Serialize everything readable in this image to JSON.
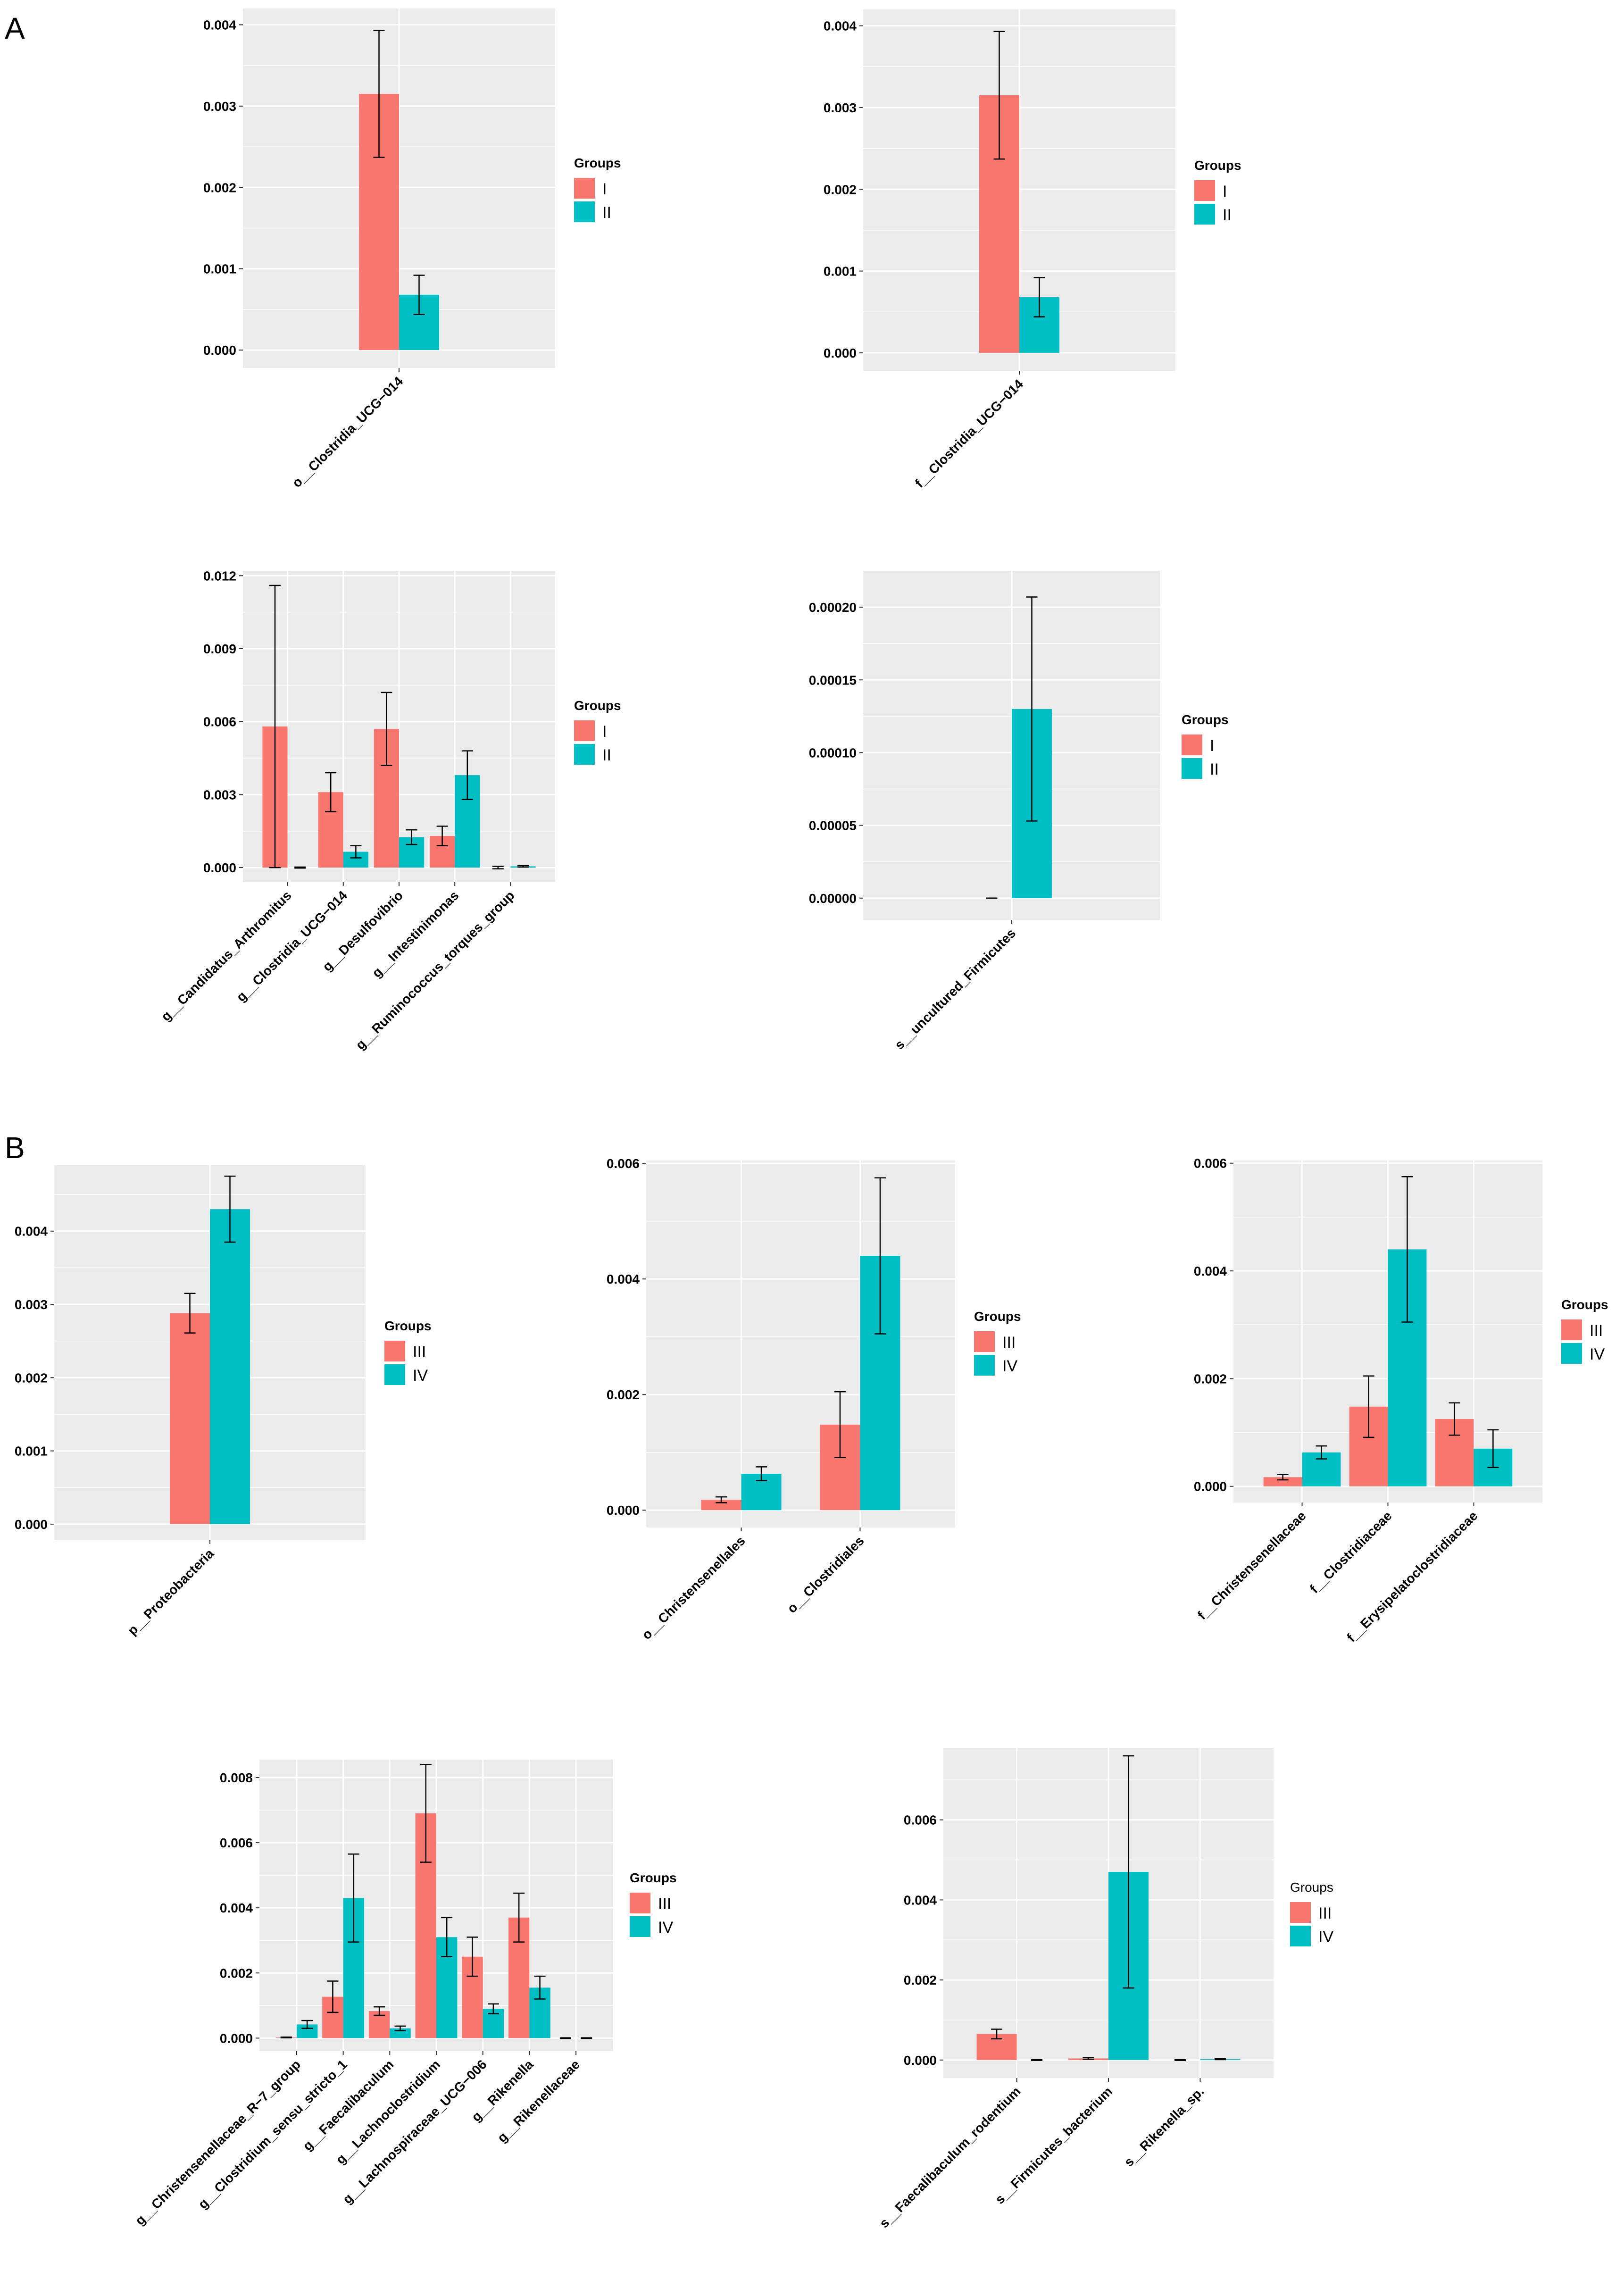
{
  "figure": {
    "panel_letters": [
      "A",
      "B"
    ],
    "colors": {
      "I": "#F8766D",
      "II": "#00BFC4",
      "III": "#F8766D",
      "IV": "#00BFC4",
      "panel_bg": "#EBEBEB",
      "grid": "#FFFFFF"
    }
  },
  "chart_data": [
    {
      "id": "A1",
      "type": "bar",
      "categories": [
        "o__Clostridia_UCG−014"
      ],
      "series": [
        {
          "name": "I",
          "values": [
            0.00315
          ],
          "errors": [
            0.00078
          ]
        },
        {
          "name": "II",
          "values": [
            0.00068
          ],
          "errors": [
            0.00024
          ]
        }
      ],
      "yticks": [
        "0.000",
        "0.001",
        "0.002",
        "0.003",
        "0.004"
      ],
      "ylim": [
        -0.00022,
        0.0042
      ],
      "legend": {
        "title": "Groups",
        "entries": [
          "I",
          "II"
        ],
        "placement": "right"
      }
    },
    {
      "id": "A2",
      "type": "bar",
      "categories": [
        "f__Clostridia_UCG−014"
      ],
      "series": [
        {
          "name": "I",
          "values": [
            0.00315
          ],
          "errors": [
            0.00078
          ]
        },
        {
          "name": "II",
          "values": [
            0.00068
          ],
          "errors": [
            0.00024
          ]
        }
      ],
      "yticks": [
        "0.000",
        "0.001",
        "0.002",
        "0.003",
        "0.004"
      ],
      "ylim": [
        -0.00022,
        0.0042
      ],
      "legend": {
        "title": "Groups",
        "entries": [
          "I",
          "II"
        ],
        "placement": "right"
      }
    },
    {
      "id": "A3",
      "type": "bar",
      "categories": [
        "g__Candidatus_Arthromitus",
        "g__Clostridia_UCG−014",
        "g__Desulfovibrio",
        "g__Intestinimonas",
        "g__Ruminococcus_torques_group"
      ],
      "series": [
        {
          "name": "I",
          "values": [
            0.0058,
            0.0031,
            0.0057,
            0.0013,
            0.0
          ],
          "errors": [
            0.0058,
            0.0008,
            0.0015,
            0.0004,
            5e-05
          ]
        },
        {
          "name": "II",
          "values": [
            0.0,
            0.00065,
            0.00125,
            0.0038,
            5e-05
          ],
          "errors": [
            2e-05,
            0.00025,
            0.0003,
            0.001,
            3e-05
          ]
        }
      ],
      "yticks": [
        "0.000",
        "0.003",
        "0.006",
        "0.009",
        "0.012"
      ],
      "ylim": [
        -0.0006,
        0.0122
      ],
      "legend": {
        "title": "Groups",
        "entries": [
          "I",
          "II"
        ],
        "placement": "right"
      }
    },
    {
      "id": "A4",
      "type": "bar",
      "categories": [
        "s__uncultured_Firmicutes"
      ],
      "series": [
        {
          "name": "I",
          "values": [
            0.0
          ],
          "errors": [
            0.0
          ]
        },
        {
          "name": "II",
          "values": [
            0.00013
          ],
          "errors": [
            7.7e-05
          ]
        }
      ],
      "yticks": [
        "0.00000",
        "0.00005",
        "0.00010",
        "0.00015",
        "0.00020"
      ],
      "ylim": [
        -1.5e-05,
        0.000225
      ],
      "legend": {
        "title": "Groups",
        "entries": [
          "I",
          "II"
        ],
        "placement": "right"
      }
    },
    {
      "id": "B1",
      "type": "bar",
      "categories": [
        "p__Proteobacteria"
      ],
      "series": [
        {
          "name": "III",
          "values": [
            0.00288
          ],
          "errors": [
            0.00027
          ]
        },
        {
          "name": "IV",
          "values": [
            0.0043
          ],
          "errors": [
            0.00045
          ]
        }
      ],
      "yticks": [
        "0.000",
        "0.001",
        "0.002",
        "0.003",
        "0.004"
      ],
      "ylim": [
        -0.00022,
        0.0049
      ],
      "legend": {
        "title": "Groups",
        "entries": [
          "III",
          "IV"
        ],
        "placement": "right"
      }
    },
    {
      "id": "B2",
      "type": "bar",
      "categories": [
        "o__Christensenellales",
        "o__Clostridiales"
      ],
      "series": [
        {
          "name": "III",
          "values": [
            0.00018,
            0.00148
          ],
          "errors": [
            5e-05,
            0.00057
          ]
        },
        {
          "name": "IV",
          "values": [
            0.00063,
            0.0044
          ],
          "errors": [
            0.00012,
            0.00135
          ]
        }
      ],
      "yticks": [
        "0.000",
        "0.002",
        "0.004",
        "0.006"
      ],
      "ylim": [
        -0.0003,
        0.00605
      ],
      "legend": {
        "title": "Groups",
        "entries": [
          "III",
          "IV"
        ],
        "placement": "right"
      }
    },
    {
      "id": "B3",
      "type": "bar",
      "categories": [
        "f__Christensenellaceae",
        "f__Clostridiaceae",
        "f__Erysipelatoclostridiaceae"
      ],
      "series": [
        {
          "name": "III",
          "values": [
            0.00017,
            0.00148,
            0.00125
          ],
          "errors": [
            5e-05,
            0.00057,
            0.0003
          ]
        },
        {
          "name": "IV",
          "values": [
            0.00063,
            0.0044,
            0.0007
          ],
          "errors": [
            0.00012,
            0.00135,
            0.00035
          ]
        }
      ],
      "yticks": [
        "0.000",
        "0.002",
        "0.004",
        "0.006"
      ],
      "ylim": [
        -0.0003,
        0.00605
      ],
      "legend": {
        "title": "Groups",
        "entries": [
          "III",
          "IV"
        ],
        "placement": "right"
      }
    },
    {
      "id": "B4",
      "type": "bar",
      "categories": [
        "g__Christensenellaceae_R−7_group",
        "g__Clostridium_sensu_stricto_1",
        "g__Faecalibaculum",
        "g__Lachnoclostridium",
        "g__Lachnospiraceae_UCG−006",
        "g__Rikenella",
        "g__Rikenellaceae"
      ],
      "series": [
        {
          "name": "III",
          "values": [
            2e-05,
            0.00127,
            0.00083,
            0.0069,
            0.0025,
            0.0037,
            0.0
          ],
          "errors": [
            1e-05,
            0.00048,
            0.00013,
            0.0015,
            0.0006,
            0.00075,
            1e-05
          ]
        },
        {
          "name": "IV",
          "values": [
            0.00042,
            0.0043,
            0.0003,
            0.0031,
            0.0009,
            0.00155,
            0.0
          ],
          "errors": [
            0.00012,
            0.00135,
            7e-05,
            0.0006,
            0.00015,
            0.00035,
            1e-05
          ]
        }
      ],
      "yticks": [
        "0.000",
        "0.002",
        "0.004",
        "0.006",
        "0.008"
      ],
      "ylim": [
        -0.0004,
        0.00855
      ],
      "legend": {
        "title": "Groups",
        "entries": [
          "III",
          "IV"
        ],
        "placement": "right"
      }
    },
    {
      "id": "B5",
      "type": "bar",
      "categories": [
        "s__Faecalibaculum_rodentium",
        "s__Firmicutes_bacterium",
        "s__Rikenella_sp."
      ],
      "series": [
        {
          "name": "III",
          "values": [
            0.00065,
            4e-05,
            0.0
          ],
          "errors": [
            0.00012,
            2e-05,
            1e-05
          ]
        },
        {
          "name": "IV",
          "values": [
            0.0,
            0.0047,
            2e-05
          ],
          "errors": [
            1e-05,
            0.0029,
            1e-05
          ]
        }
      ],
      "yticks": [
        "0.000",
        "0.002",
        "0.004",
        "0.006"
      ],
      "ylim": [
        -0.00045,
        0.0078
      ],
      "legend": {
        "title": "Groups",
        "entries": [
          "III",
          "IV"
        ],
        "placement": "right"
      }
    }
  ]
}
